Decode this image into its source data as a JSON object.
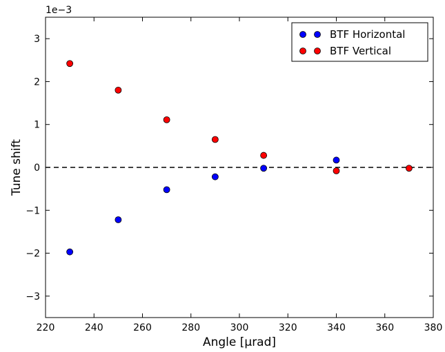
{
  "chart_data": {
    "type": "scatter",
    "title": "",
    "xlabel": "Angle [μrad]",
    "ylabel": "Tune shift",
    "y_offset_label": "1e−3",
    "xlim": [
      220,
      380
    ],
    "ylim": [
      -3.5,
      3.5
    ],
    "y_scale_note": "values in units of 1e-3",
    "xticks": [
      220,
      240,
      260,
      280,
      300,
      320,
      340,
      360,
      380
    ],
    "yticks": [
      -3,
      -2,
      -1,
      0,
      1,
      2,
      3
    ],
    "ytick_labels": [
      "−3",
      "−2",
      "−1",
      "0",
      "1",
      "2",
      "3"
    ],
    "reference_line": {
      "y": 0,
      "style": "dashed",
      "color": "#000000"
    },
    "legend_position": "top-right",
    "series": [
      {
        "name": "BTF Horizontal",
        "color": "#0000ff",
        "x": [
          230,
          250,
          270,
          290,
          310,
          340
        ],
        "y": [
          -1.97,
          -1.22,
          -0.52,
          -0.22,
          -0.02,
          0.17
        ]
      },
      {
        "name": "BTF Vertical",
        "color": "#ff0000",
        "x": [
          230,
          250,
          270,
          290,
          310,
          340,
          370
        ],
        "y": [
          2.42,
          1.8,
          1.11,
          0.65,
          0.28,
          -0.08,
          -0.02
        ]
      }
    ]
  }
}
